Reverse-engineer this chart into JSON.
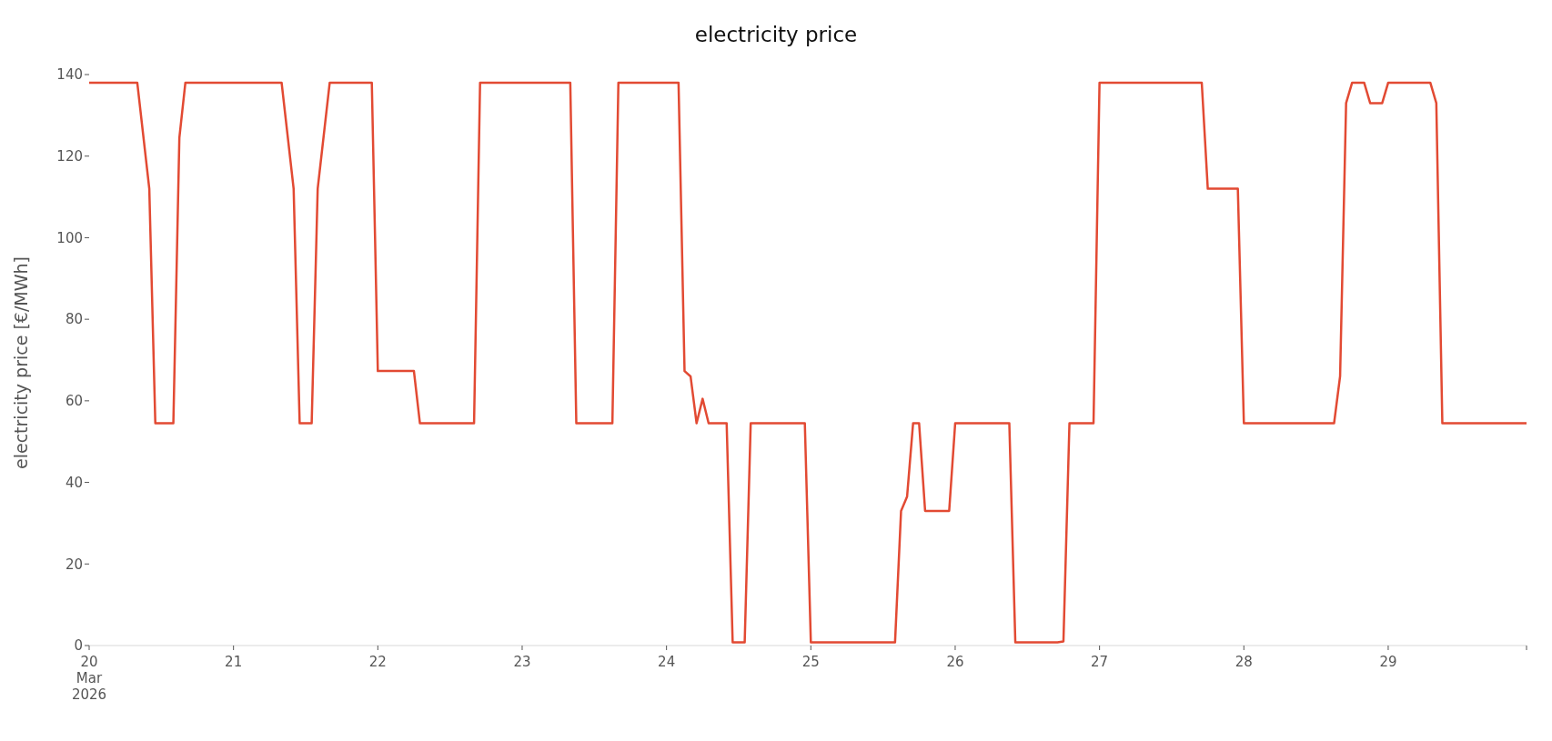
{
  "chart_data": {
    "type": "line",
    "title": "electricity price",
    "ylabel": "electricity price [€/MWh]",
    "x": [
      "2026-03-20T00:00",
      "2026-03-20T08:00",
      "2026-03-20T10:00",
      "2026-03-20T11:00",
      "2026-03-20T14:00",
      "2026-03-20T15:00",
      "2026-03-20T16:00",
      "2026-03-21T08:00",
      "2026-03-21T10:00",
      "2026-03-21T11:00",
      "2026-03-21T13:00",
      "2026-03-21T14:00",
      "2026-03-21T16:00",
      "2026-03-21T23:00",
      "2026-03-22T00:00",
      "2026-03-22T06:00",
      "2026-03-22T07:00",
      "2026-03-22T16:00",
      "2026-03-22T17:00",
      "2026-03-23T08:00",
      "2026-03-23T09:00",
      "2026-03-23T15:00",
      "2026-03-23T16:00",
      "2026-03-24T02:00",
      "2026-03-24T03:00",
      "2026-03-24T04:00",
      "2026-03-24T05:00",
      "2026-03-24T06:00",
      "2026-03-24T07:00",
      "2026-03-24T10:00",
      "2026-03-24T11:00",
      "2026-03-24T13:00",
      "2026-03-24T14:00",
      "2026-03-24T23:00",
      "2026-03-25T00:00",
      "2026-03-25T14:00",
      "2026-03-25T15:00",
      "2026-03-25T16:00",
      "2026-03-25T17:00",
      "2026-03-25T18:00",
      "2026-03-25T19:00",
      "2026-03-25T23:00",
      "2026-03-26T00:00",
      "2026-03-26T09:00",
      "2026-03-26T10:00",
      "2026-03-26T17:00",
      "2026-03-26T18:00",
      "2026-03-26T19:00",
      "2026-03-26T23:00",
      "2026-03-27T00:00",
      "2026-03-27T17:00",
      "2026-03-27T18:00",
      "2026-03-27T23:00",
      "2026-03-28T00:00",
      "2026-03-28T15:00",
      "2026-03-28T16:00",
      "2026-03-28T17:00",
      "2026-03-28T18:00",
      "2026-03-28T20:00",
      "2026-03-28T21:00",
      "2026-03-28T23:00",
      "2026-03-29T00:00",
      "2026-03-29T07:00",
      "2026-03-29T08:00",
      "2026-03-29T09:00",
      "2026-03-29T23:00"
    ],
    "series": [
      {
        "color": "#e24a33",
        "values": [
          138,
          138,
          112,
          54.5,
          54.5,
          124.5,
          138,
          138,
          112,
          54.5,
          54.5,
          112,
          138,
          138,
          67.3,
          67.3,
          54.5,
          54.5,
          138,
          138,
          54.5,
          54.5,
          138,
          138,
          67.3,
          66,
          54.5,
          60.5,
          54.5,
          54.5,
          0.8,
          0.8,
          54.5,
          54.5,
          0.8,
          0.8,
          33,
          36.5,
          54.5,
          54.5,
          33,
          33,
          54.5,
          54.5,
          0.8,
          0.8,
          1,
          54.5,
          54.5,
          138,
          138,
          112,
          112,
          54.5,
          54.5,
          66,
          133,
          138,
          138,
          133,
          133,
          138,
          138,
          133,
          54.5,
          54.5
        ]
      }
    ],
    "xlim": [
      "2026-03-20T00:00",
      "2026-03-29T23:00"
    ],
    "xticks": [
      {
        "value": "2026-03-20T00:00",
        "label": "20\nMar\n2026"
      },
      {
        "value": "2026-03-21T00:00",
        "label": "21"
      },
      {
        "value": "2026-03-22T00:00",
        "label": "22"
      },
      {
        "value": "2026-03-23T00:00",
        "label": "23"
      },
      {
        "value": "2026-03-24T00:00",
        "label": "24"
      },
      {
        "value": "2026-03-25T00:00",
        "label": "25"
      },
      {
        "value": "2026-03-26T00:00",
        "label": "26"
      },
      {
        "value": "2026-03-27T00:00",
        "label": "27"
      },
      {
        "value": "2026-03-28T00:00",
        "label": "28"
      },
      {
        "value": "2026-03-29T00:00",
        "label": "29"
      },
      {
        "value": "2026-03-29T23:00",
        "label": null
      }
    ],
    "ylim": [
      0,
      140
    ],
    "yticks": [
      0,
      20,
      40,
      60,
      80,
      100,
      120,
      140
    ],
    "grid": false,
    "legend": false,
    "marker": "none",
    "line_style": "solid"
  }
}
